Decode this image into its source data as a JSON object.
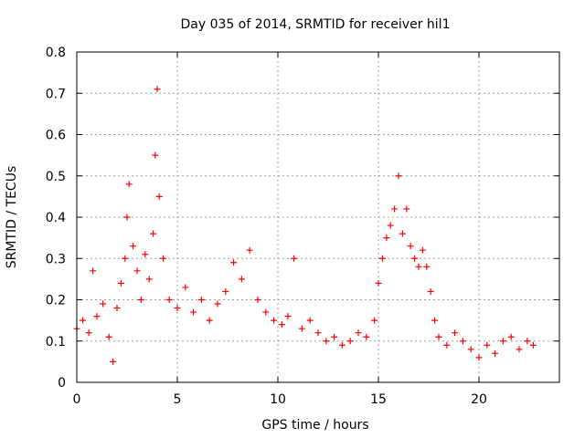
{
  "chart_data": {
    "type": "scatter",
    "title": "Day 035 of 2014, SRMTID for receiver hil1",
    "xlabel": "GPS time / hours",
    "ylabel": "SRMTID / TECUs",
    "xlim": [
      0,
      24
    ],
    "ylim": [
      0,
      0.8
    ],
    "x_ticks": [
      0,
      5,
      10,
      15,
      20
    ],
    "y_ticks": [
      0,
      0.1,
      0.2,
      0.3,
      0.4,
      0.5,
      0.6,
      0.7,
      0.8
    ],
    "x_tick_labels": [
      "0",
      "5",
      "10",
      "15",
      "20"
    ],
    "y_tick_labels": [
      "0",
      "0.1",
      "0.2",
      "0.3",
      "0.4",
      "0.5",
      "0.6",
      "0.7",
      "0.8"
    ],
    "grid": true,
    "marker": "+",
    "color": "#ff0000",
    "series": [
      {
        "name": "SRMTID",
        "x": [
          0.0,
          0.3,
          0.6,
          0.8,
          1.0,
          1.3,
          1.6,
          1.8,
          2.0,
          2.2,
          2.4,
          2.5,
          2.6,
          2.8,
          3.0,
          3.2,
          3.4,
          3.6,
          3.8,
          3.9,
          4.0,
          4.1,
          4.3,
          4.6,
          5.0,
          5.4,
          5.8,
          6.2,
          6.6,
          7.0,
          7.4,
          7.8,
          8.2,
          8.6,
          9.0,
          9.4,
          9.8,
          10.2,
          10.5,
          10.8,
          11.2,
          11.6,
          12.0,
          12.4,
          12.8,
          13.2,
          13.6,
          14.0,
          14.4,
          14.8,
          15.0,
          15.2,
          15.4,
          15.6,
          15.8,
          16.0,
          16.2,
          16.4,
          16.6,
          16.8,
          17.0,
          17.2,
          17.4,
          17.6,
          17.8,
          18.0,
          18.4,
          18.8,
          19.2,
          19.6,
          20.0,
          20.4,
          20.8,
          21.2,
          21.6,
          22.0,
          22.4,
          22.7
        ],
        "y": [
          0.13,
          0.15,
          0.12,
          0.27,
          0.16,
          0.19,
          0.11,
          0.05,
          0.18,
          0.24,
          0.3,
          0.4,
          0.48,
          0.33,
          0.27,
          0.2,
          0.31,
          0.25,
          0.36,
          0.55,
          0.71,
          0.45,
          0.3,
          0.2,
          0.18,
          0.23,
          0.17,
          0.2,
          0.15,
          0.19,
          0.22,
          0.29,
          0.25,
          0.32,
          0.2,
          0.17,
          0.15,
          0.14,
          0.16,
          0.3,
          0.13,
          0.15,
          0.12,
          0.1,
          0.11,
          0.09,
          0.1,
          0.12,
          0.11,
          0.15,
          0.24,
          0.3,
          0.35,
          0.38,
          0.42,
          0.5,
          0.36,
          0.42,
          0.33,
          0.3,
          0.28,
          0.32,
          0.28,
          0.22,
          0.15,
          0.11,
          0.09,
          0.12,
          0.1,
          0.08,
          0.06,
          0.09,
          0.07,
          0.1,
          0.11,
          0.08,
          0.1,
          0.09
        ]
      }
    ]
  }
}
